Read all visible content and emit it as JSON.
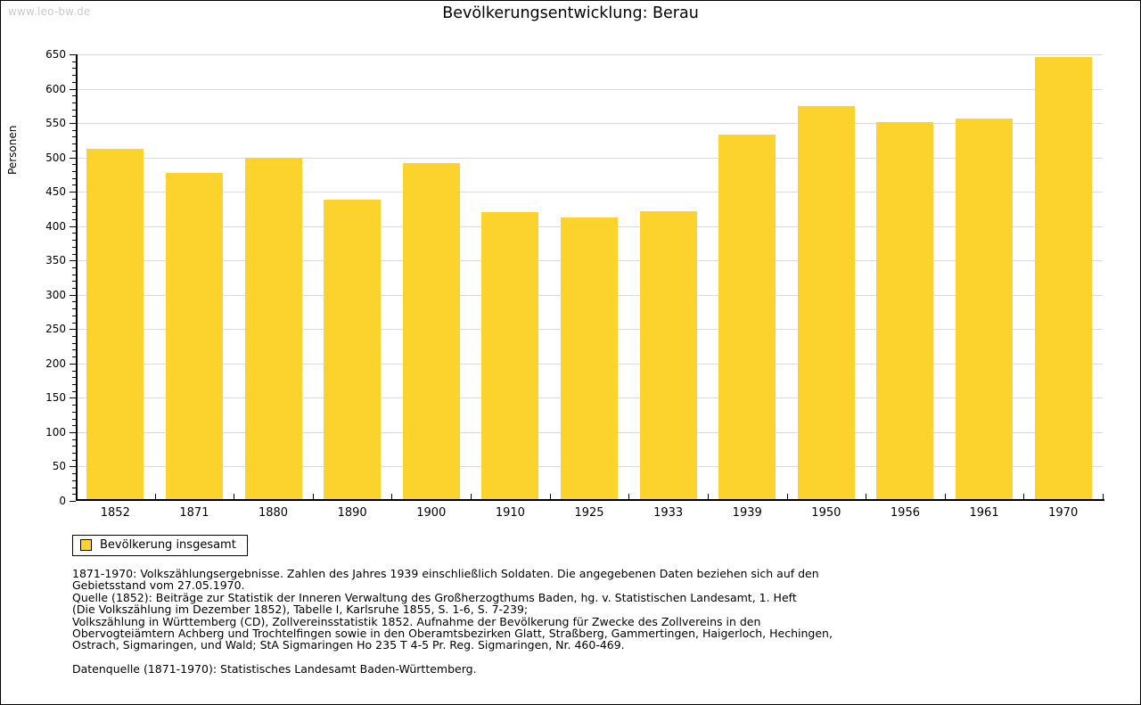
{
  "page": {
    "watermark": "www.leo-bw.de",
    "title": "Bevölkerungsentwicklung: Berau"
  },
  "chart_data": {
    "type": "bar",
    "title": "Bevölkerungsentwicklung: Berau",
    "xlabel": "",
    "ylabel": "Personen",
    "categories": [
      "1852",
      "1871",
      "1880",
      "1890",
      "1900",
      "1910",
      "1925",
      "1933",
      "1939",
      "1950",
      "1956",
      "1961",
      "1970"
    ],
    "values": [
      513,
      478,
      500,
      438,
      492,
      421,
      413,
      422,
      533,
      575,
      551,
      556,
      646
    ],
    "ylim": [
      0,
      650
    ],
    "ytick_major_step": 50,
    "ytick_minor_step": 10,
    "grid": "horizontal-major",
    "legend_position": "bottom-left",
    "bar_color": "#FCD32D",
    "grid_color": "#DBDBDB",
    "axis_color": "#000000"
  },
  "legend": {
    "label": "Bevölkerung insgesamt"
  },
  "footnotes": {
    "lines": [
      "1871-1970: Volkszählungsergebnisse. Zahlen des Jahres 1939 einschließlich Soldaten. Die angegebenen Daten beziehen sich auf den",
      "Gebietsstand vom 27.05.1970.",
      "Quelle (1852): Beiträge zur Statistik der Inneren Verwaltung des Großherzogthums Baden, hg. v. Statistischen Landesamt, 1. Heft",
      "(Die Volkszählung im Dezember 1852), Tabelle I, Karlsruhe 1855, S. 1-6, S. 7-239;",
      "Volkszählung in Württemberg (CD), Zollvereinsstatistik 1852. Aufnahme der Bevölkerung für Zwecke des Zollvereins in den",
      "Obervogteiämtern Achberg und Trochtelfingen sowie in den Oberamtsbezirken Glatt, Straßberg, Gammertingen, Haigerloch, Hechingen,",
      "Ostrach, Sigmaringen, und Wald; StA Sigmaringen Ho 235 T 4-5 Pr. Reg. Sigmaringen, Nr. 460-469."
    ],
    "datasource": "Datenquelle (1871-1970): Statistisches Landesamt Baden-Württemberg."
  }
}
